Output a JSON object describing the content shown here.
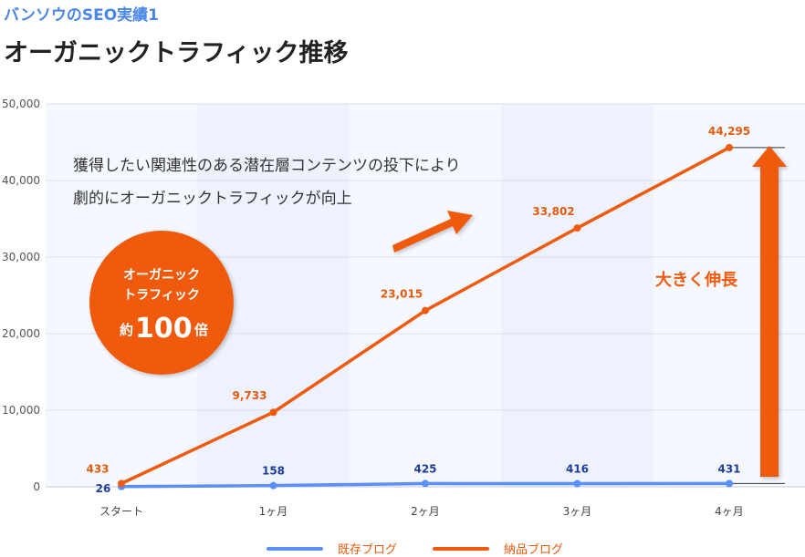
{
  "header": {
    "subtitle": "バンソウのSEO実績1",
    "title": "オーガニックトラフィック推移"
  },
  "colors": {
    "existing": "#5b8ff9",
    "delivered": "#f05a0f",
    "existing_label": "#1f3e9c",
    "delivered_label": "#e8590c",
    "band": "#edf2fc",
    "plot_bg": "#f5f8fe",
    "grid": "#d7deea"
  },
  "annotations": {
    "line1": "獲得したい関連性のある潜在層コンテンツの投下により",
    "line2": "劇的にオーガニックトラフィックが向上",
    "badge_line1": "オーガニック",
    "badge_line2": "トラフィック",
    "badge_prefix": "約",
    "badge_number": "100",
    "badge_suffix": "倍",
    "growth_label": "大きく伸長"
  },
  "chart_data": {
    "type": "line",
    "categories": [
      "スタート",
      "1ヶ月",
      "2ヶ月",
      "3ヶ月",
      "4ヶ月"
    ],
    "ylim": [
      0,
      50000
    ],
    "yticks": [
      "0",
      "10,000",
      "20,000",
      "30,000",
      "40,000",
      "50,000"
    ],
    "grid": true,
    "legend_position": "bottom",
    "series": [
      {
        "name": "既存ブログ",
        "values": [
          26,
          158,
          425,
          416,
          431
        ],
        "labels": [
          "26",
          "158",
          "425",
          "416",
          "431"
        ]
      },
      {
        "name": "納品ブログ",
        "values": [
          433,
          9733,
          23015,
          33802,
          44295
        ],
        "labels": [
          "433",
          "9,733",
          "23,015",
          "33,802",
          "44,295"
        ]
      }
    ]
  }
}
